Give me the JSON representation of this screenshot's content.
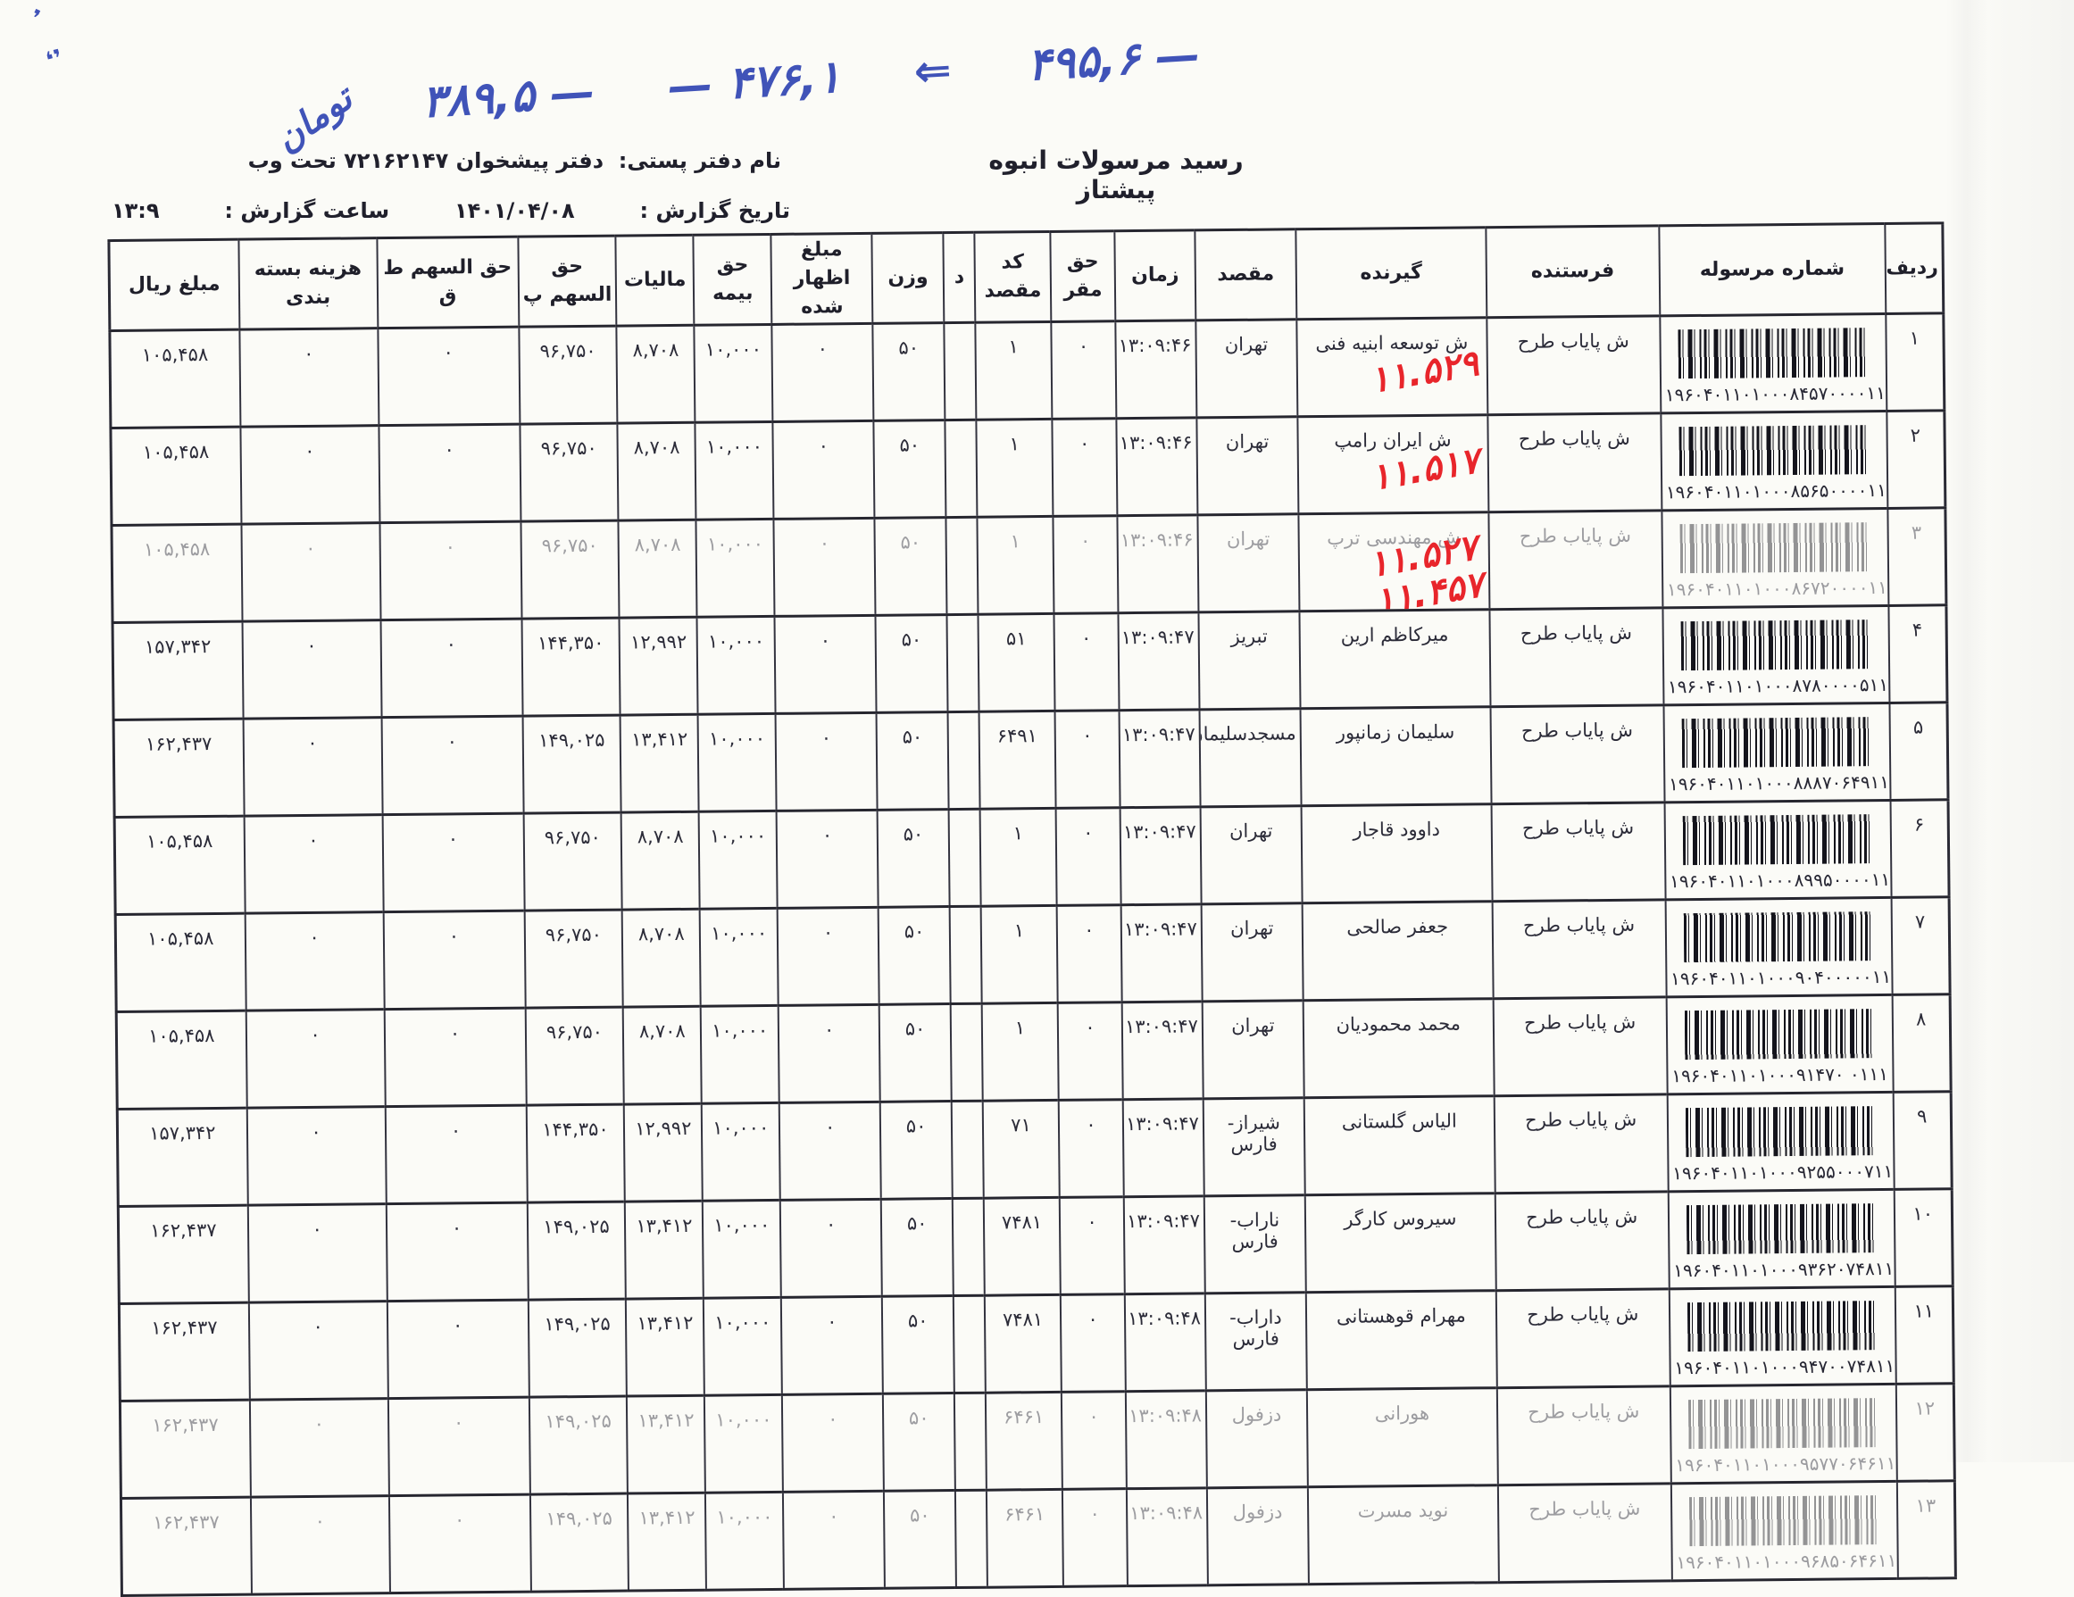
{
  "handwriting": {
    "segments_ltr": [
      "تومان",
      "۳۸۹,۵ —",
      "— ۴۷۶,۱",
      "⇐",
      "۴۹۵,۶ —"
    ],
    "corner_marks": [
      "،",
      "٬"
    ]
  },
  "header": {
    "title": "رسید مرسولات انبوه  پیشتاز",
    "office_label": "نام دفتر پستی:",
    "office_value": "دفتر پیشخوان ۷۲۱۶۲۱۴۷ تحت وب",
    "report_date_label": "تاریخ گزارش :",
    "report_date": "۱۴۰۱/۰۴/۰۸",
    "report_time_label": "ساعت گزارش :",
    "report_time": "۱۳:۹"
  },
  "colors": {
    "ink": "#23232e",
    "pen_blue": "#4053b8",
    "pen_red": "#e8252b",
    "paper": "#fbfbf7"
  },
  "table": {
    "columns": [
      {
        "key": "radif",
        "label": "ردیف",
        "width": 3.16
      },
      {
        "key": "parcel",
        "label": "شماره مرسوله",
        "width": 12.31
      },
      {
        "key": "sender",
        "label": "فرستنده",
        "width": 9.44
      },
      {
        "key": "receiver",
        "label": "گیرنده",
        "width": 10.36
      },
      {
        "key": "destination",
        "label": "مقصد",
        "width": 5.5
      },
      {
        "key": "time",
        "label": "زمان",
        "width": 4.38
      },
      {
        "key": "base_fee",
        "label": "حق مقر",
        "width": 3.5
      },
      {
        "key": "dest_code",
        "label": "کد مقصد",
        "width": 4.14
      },
      {
        "key": "d",
        "label": "د",
        "width": 1.7
      },
      {
        "key": "weight",
        "label": "وزن",
        "width": 3.89
      },
      {
        "key": "declared",
        "label": "مبلغ اظهار شده",
        "width": 5.5
      },
      {
        "key": "insurance",
        "label": "حق بیمه",
        "width": 4.23
      },
      {
        "key": "tax",
        "label": "مالیات",
        "width": 4.23
      },
      {
        "key": "share_p",
        "label": "حق السهم پ",
        "width": 5.35
      },
      {
        "key": "share_tq",
        "label": "حق السهم ط ق",
        "width": 7.69
      },
      {
        "key": "packing",
        "label": "هزینه بسته بندی",
        "width": 7.54
      },
      {
        "key": "amount",
        "label": "مبلغ ریال",
        "width": 7.06
      }
    ],
    "rows": [
      {
        "radif": "۱",
        "parcel_number": "۱۹۶۰۴۰۱۱۰۱۰۰۰۸۴۵۷۰۰۰۰۱۱۱",
        "sender": "ش پایاب طرح",
        "receiver": "ش توسعه ابنیه فنی",
        "red_notes": [
          "۱۱.۵۲۹"
        ],
        "destination": "تهران",
        "time": "۱۳:۰۹:۴۶",
        "base_fee": "۰",
        "dest_code": "۱",
        "d": "",
        "weight": "۵۰",
        "declared": "۰",
        "insurance": "۱۰,۰۰۰",
        "tax": "۸,۷۰۸",
        "share_p": "۹۶,۷۵۰",
        "share_tq": "۰",
        "packing": "۰",
        "amount": "۱۰۵,۴۵۸",
        "light": false
      },
      {
        "radif": "۲",
        "parcel_number": "۱۹۶۰۴۰۱۱۰۱۰۰۰۸۵۶۵۰۰۰۰۱۱۱",
        "sender": "ش پایاب طرح",
        "receiver": "ش ایران رامپ",
        "red_notes": [
          "۱۱.۵۱۷"
        ],
        "destination": "تهران",
        "time": "۱۳:۰۹:۴۶",
        "base_fee": "۰",
        "dest_code": "۱",
        "d": "",
        "weight": "۵۰",
        "declared": "۰",
        "insurance": "۱۰,۰۰۰",
        "tax": "۸,۷۰۸",
        "share_p": "۹۶,۷۵۰",
        "share_tq": "۰",
        "packing": "۰",
        "amount": "۱۰۵,۴۵۸",
        "light": false
      },
      {
        "radif": "۳",
        "parcel_number": "۱۹۶۰۴۰۱۱۰۱۰۰۰۸۶۷۲۰۰۰۰۱۱۱",
        "sender": "ش پایاب طرح",
        "receiver": "ش مهندسی ترپ",
        "red_notes": [
          "۱۱.۵۲۷",
          "۱۱.۴۵۷"
        ],
        "destination": "تهران",
        "time": "۱۳:۰۹:۴۶",
        "base_fee": "۰",
        "dest_code": "۱",
        "d": "",
        "weight": "۵۰",
        "declared": "۰",
        "insurance": "۱۰,۰۰۰",
        "tax": "۸,۷۰۸",
        "share_p": "۹۶,۷۵۰",
        "share_tq": "۰",
        "packing": "۰",
        "amount": "۱۰۵,۴۵۸",
        "light": true
      },
      {
        "radif": "۴",
        "parcel_number": "۱۹۶۰۴۰۱۱۰۱۰۰۰۸۷۸۰۰۰۰۵۱۱۱",
        "sender": "ش پایاب طرح",
        "receiver": "میرکاظم ارین",
        "red_notes": [],
        "destination": "تبریز",
        "time": "۱۳:۰۹:۴۷",
        "base_fee": "۰",
        "dest_code": "۵۱",
        "d": "",
        "weight": "۵۰",
        "declared": "۰",
        "insurance": "۱۰,۰۰۰",
        "tax": "۱۲,۹۹۲",
        "share_p": "۱۴۴,۳۵۰",
        "share_tq": "۰",
        "packing": "۰",
        "amount": "۱۵۷,۳۴۲",
        "light": false
      },
      {
        "radif": "۵",
        "parcel_number": "۱۹۶۰۴۰۱۱۰۱۰۰۰۸۸۸۷۰۶۴۹۱۱۱",
        "sender": "ش پایاب طرح",
        "receiver": "سلیمان زمانپور",
        "red_notes": [],
        "destination": "مسجدسلیمان",
        "time": "۱۳:۰۹:۴۷",
        "base_fee": "۰",
        "dest_code": "۶۴۹۱",
        "d": "",
        "weight": "۵۰",
        "declared": "۰",
        "insurance": "۱۰,۰۰۰",
        "tax": "۱۳,۴۱۲",
        "share_p": "۱۴۹,۰۲۵",
        "share_tq": "۰",
        "packing": "۰",
        "amount": "۱۶۲,۴۳۷",
        "light": false
      },
      {
        "radif": "۶",
        "parcel_number": "۱۹۶۰۴۰۱۱۰۱۰۰۰۸۹۹۵۰۰۰۰۱۱۱",
        "sender": "ش پایاب طرح",
        "receiver": "داوود قاجار",
        "red_notes": [],
        "destination": "تهران",
        "time": "۱۳:۰۹:۴۷",
        "base_fee": "۰",
        "dest_code": "۱",
        "d": "",
        "weight": "۵۰",
        "declared": "۰",
        "insurance": "۱۰,۰۰۰",
        "tax": "۸,۷۰۸",
        "share_p": "۹۶,۷۵۰",
        "share_tq": "۰",
        "packing": "۰",
        "amount": "۱۰۵,۴۵۸",
        "light": false
      },
      {
        "radif": "۷",
        "parcel_number": "۱۹۶۰۴۰۱۱۰۱۰۰۰۹۰۴۰۰۰۰۰۱۱۱",
        "sender": "ش پایاب طرح",
        "receiver": "جعفر صالحی",
        "red_notes": [],
        "destination": "تهران",
        "time": "۱۳:۰۹:۴۷",
        "base_fee": "۰",
        "dest_code": "۱",
        "d": "",
        "weight": "۵۰",
        "declared": "۰",
        "insurance": "۱۰,۰۰۰",
        "tax": "۸,۷۰۸",
        "share_p": "۹۶,۷۵۰",
        "share_tq": "۰",
        "packing": "۰",
        "amount": "۱۰۵,۴۵۸",
        "light": false
      },
      {
        "radif": "۸",
        "parcel_number": "۱۹۶۰۴۰۱۱۰۱۰۰۰۹۱۴۷۰ ۰۱۱۱",
        "sender": "ش پایاب طرح",
        "receiver": "محمد محمودیان",
        "red_notes": [],
        "destination": "تهران",
        "time": "۱۳:۰۹:۴۷",
        "base_fee": "۰",
        "dest_code": "۱",
        "d": "",
        "weight": "۵۰",
        "declared": "۰",
        "insurance": "۱۰,۰۰۰",
        "tax": "۸,۷۰۸",
        "share_p": "۹۶,۷۵۰",
        "share_tq": "۰",
        "packing": "۰",
        "amount": "۱۰۵,۴۵۸",
        "light": false
      },
      {
        "radif": "۹",
        "parcel_number": "۱۹۶۰۴۰۱۱۰۱۰۰۰۹۲۵۵۰۰۰۷۱۱۱",
        "sender": "ش پایاب طرح",
        "receiver": "الیاس گلستانی",
        "red_notes": [],
        "destination": "شیراز-فارس",
        "time": "۱۳:۰۹:۴۷",
        "base_fee": "۰",
        "dest_code": "۷۱",
        "d": "",
        "weight": "۵۰",
        "declared": "۰",
        "insurance": "۱۰,۰۰۰",
        "tax": "۱۲,۹۹۲",
        "share_p": "۱۴۴,۳۵۰",
        "share_tq": "۰",
        "packing": "۰",
        "amount": "۱۵۷,۳۴۲",
        "light": false
      },
      {
        "radif": "۱۰",
        "parcel_number": "۱۹۶۰۴۰۱۱۰۱۰۰۰۹۳۶۲۰۷۴۸۱۱۱",
        "sender": "ش پایاب طرح",
        "receiver": "سیروس کارگر",
        "red_notes": [],
        "destination": "ناراب-فارس",
        "time": "۱۳:۰۹:۴۷",
        "base_fee": "۰",
        "dest_code": "۷۴۸۱",
        "d": "",
        "weight": "۵۰",
        "declared": "۰",
        "insurance": "۱۰,۰۰۰",
        "tax": "۱۳,۴۱۲",
        "share_p": "۱۴۹,۰۲۵",
        "share_tq": "۰",
        "packing": "۰",
        "amount": "۱۶۲,۴۳۷",
        "light": false
      },
      {
        "radif": "۱۱",
        "parcel_number": "۱۹۶۰۴۰۱۱۰۱۰۰۰۹۴۷۰۰۷۴۸۱۱۱",
        "sender": "ش پایاب طرح",
        "receiver": "مهرام قوهستانی",
        "red_notes": [],
        "destination": "داراب-فارس",
        "time": "۱۳:۰۹:۴۸",
        "base_fee": "۰",
        "dest_code": "۷۴۸۱",
        "d": "",
        "weight": "۵۰",
        "declared": "۰",
        "insurance": "۱۰,۰۰۰",
        "tax": "۱۳,۴۱۲",
        "share_p": "۱۴۹,۰۲۵",
        "share_tq": "۰",
        "packing": "۰",
        "amount": "۱۶۲,۴۳۷",
        "light": false
      },
      {
        "radif": "۱۲",
        "parcel_number": "۱۹۶۰۴۰۱۱۰۱۰۰۰۹۵۷۷۰۶۴۶۱۱۱",
        "sender": "ش پایاب طرح",
        "receiver": "هورانی",
        "red_notes": [],
        "destination": "دزفول",
        "time": "۱۳:۰۹:۴۸",
        "base_fee": "۰",
        "dest_code": "۶۴۶۱",
        "d": "",
        "weight": "۵۰",
        "declared": "۰",
        "insurance": "۱۰,۰۰۰",
        "tax": "۱۳,۴۱۲",
        "share_p": "۱۴۹,۰۲۵",
        "share_tq": "۰",
        "packing": "۰",
        "amount": "۱۶۲,۴۳۷",
        "light": true
      },
      {
        "radif": "۱۳",
        "parcel_number": "۱۹۶۰۴۰۱۱۰۱۰۰۰۹۶۸۵۰۶۴۶۱۱۱",
        "sender": "ش پایاب طرح",
        "receiver": "نوید مسرت",
        "red_notes": [],
        "destination": "دزفول",
        "time": "۱۳:۰۹:۴۸",
        "base_fee": "۰",
        "dest_code": "۶۴۶۱",
        "d": "",
        "weight": "۵۰",
        "declared": "۰",
        "insurance": "۱۰,۰۰۰",
        "tax": "۱۳,۴۱۲",
        "share_p": "۱۴۹,۰۲۵",
        "share_tq": "۰",
        "packing": "۰",
        "amount": "۱۶۲,۴۳۷",
        "light": true
      }
    ]
  }
}
